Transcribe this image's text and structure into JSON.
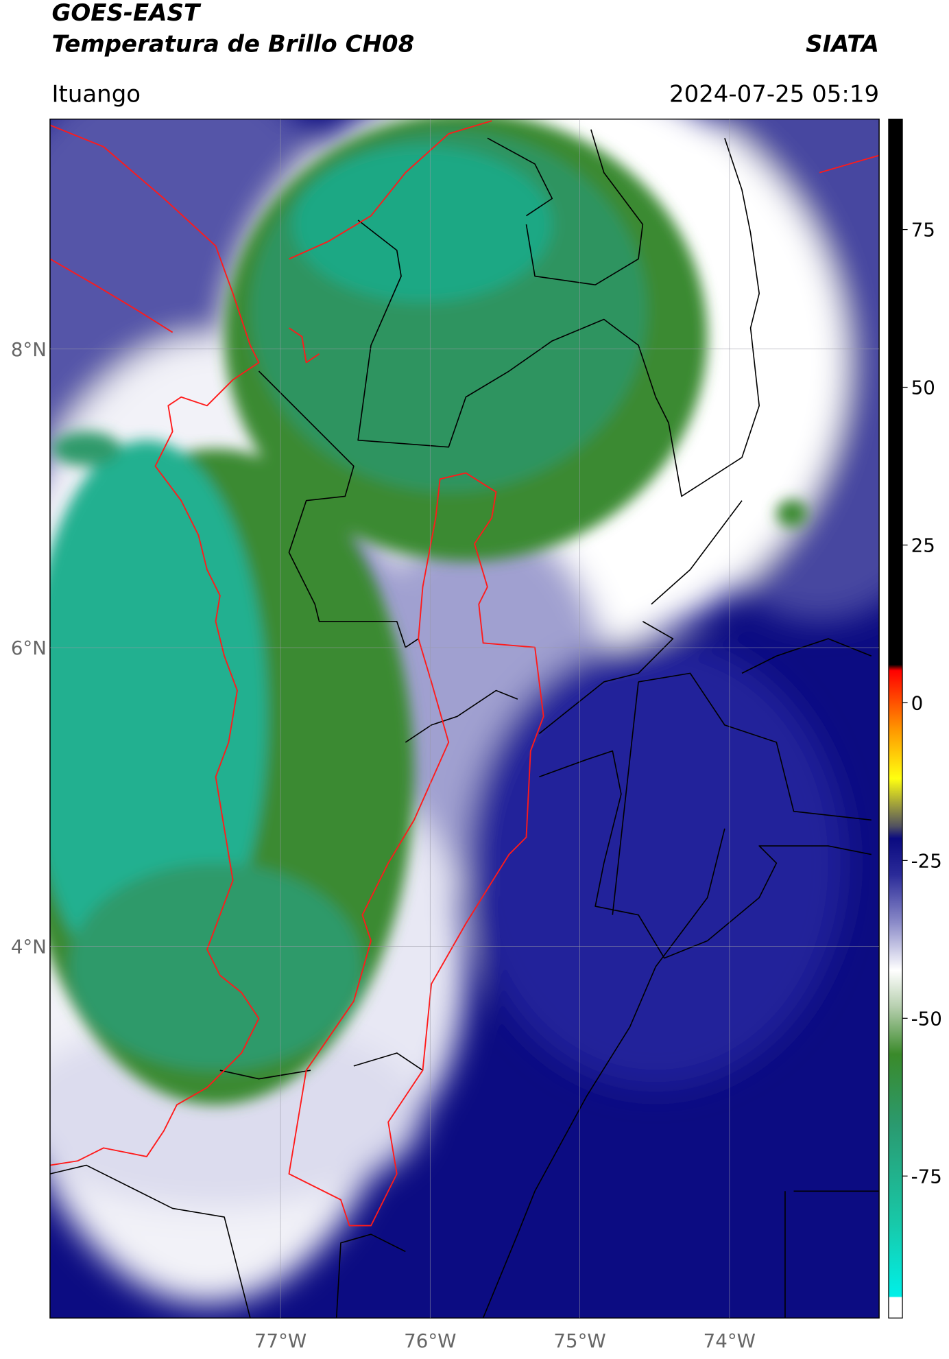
{
  "header": {
    "satellite": "GOES-EAST",
    "product": "Temperatura de Brillo CH08",
    "source": "SIATA",
    "region": "Ituango",
    "datetime": "2024-07-25 05:19"
  },
  "map": {
    "lonlim": [
      -78.54,
      -73.0
    ],
    "latlim": [
      1.51,
      9.54
    ],
    "lon_ticks": [
      {
        "value": -77,
        "label": "77°W"
      },
      {
        "value": -76,
        "label": "76°W"
      },
      {
        "value": -75,
        "label": "75°W"
      },
      {
        "value": -74,
        "label": "74°W"
      }
    ],
    "lat_ticks": [
      {
        "value": 8,
        "label": "8°N"
      },
      {
        "value": 6,
        "label": "6°N"
      },
      {
        "value": 4,
        "label": "4°N"
      }
    ],
    "grid": true
  },
  "colorbar": {
    "lim": [
      -97.5,
      92.5
    ],
    "ticks": [
      75,
      50,
      25,
      0,
      -25,
      -50,
      -75
    ]
  }
}
